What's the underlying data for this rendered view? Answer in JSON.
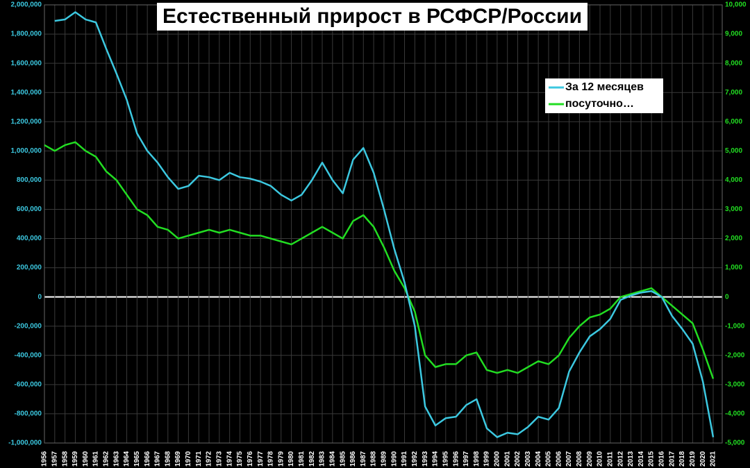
{
  "chart_data": {
    "type": "line",
    "title": "Естественный прирост в РСФСР/России",
    "x": [
      1956,
      1957,
      1958,
      1959,
      1960,
      1961,
      1962,
      1963,
      1964,
      1965,
      1966,
      1967,
      1968,
      1969,
      1970,
      1971,
      1972,
      1973,
      1974,
      1975,
      1976,
      1977,
      1978,
      1979,
      1980,
      1981,
      1982,
      1983,
      1984,
      1985,
      1986,
      1987,
      1988,
      1989,
      1990,
      1991,
      1992,
      1993,
      1994,
      1995,
      1996,
      1997,
      1998,
      1999,
      2000,
      2001,
      2002,
      2003,
      2004,
      2005,
      2006,
      2007,
      2008,
      2009,
      2010,
      2011,
      2012,
      2013,
      2014,
      2015,
      2016,
      2017,
      2018,
      2019,
      2020,
      2021
    ],
    "xlim": [
      1956,
      2021
    ],
    "xticks": [
      1956,
      1957,
      1958,
      1959,
      1960,
      1961,
      1962,
      1963,
      1964,
      1965,
      1966,
      1967,
      1968,
      1969,
      1970,
      1971,
      1972,
      1973,
      1974,
      1975,
      1976,
      1977,
      1978,
      1979,
      1980,
      1981,
      1982,
      1983,
      1984,
      1985,
      1986,
      1987,
      1988,
      1989,
      1990,
      1991,
      1992,
      1993,
      1994,
      1995,
      1996,
      1997,
      1998,
      1999,
      2000,
      2001,
      2002,
      2003,
      2004,
      2005,
      2006,
      2007,
      2008,
      2009,
      2010,
      2011,
      2012,
      2013,
      2014,
      2015,
      2016,
      2017,
      2018,
      2019,
      2020,
      2021
    ],
    "ylim": [
      -1000000,
      2000000
    ],
    "yticks": [
      {
        "value": -1000000,
        "label": "-1,000,000"
      },
      {
        "value": -800000,
        "label": "-800,000"
      },
      {
        "value": -600000,
        "label": "-600,000"
      },
      {
        "value": -400000,
        "label": "-400,000"
      },
      {
        "value": -200000,
        "label": "-200,000"
      },
      0,
      {
        "value": 200000,
        "label": "200,000"
      },
      {
        "value": 400000,
        "label": "400,000"
      },
      {
        "value": 600000,
        "label": "600,000"
      },
      {
        "value": 800000,
        "label": "800,000"
      },
      {
        "value": 1000000,
        "label": "1,000,000"
      },
      {
        "value": 1200000,
        "label": "1,200,000"
      },
      {
        "value": 1400000,
        "label": "1,400,000"
      },
      {
        "value": 1600000,
        "label": "1,600,000"
      },
      {
        "value": 1800000,
        "label": "1,800,000"
      },
      {
        "value": 2000000,
        "label": "2,000,000"
      }
    ],
    "y2lim": [
      -5000,
      10000
    ],
    "y2ticks": [
      {
        "value": -5000,
        "label": "-5,000"
      },
      {
        "value": -4000,
        "label": "-4,000"
      },
      {
        "value": -3000,
        "label": "-3,000"
      },
      {
        "value": -2000,
        "label": "-2,000"
      },
      {
        "value": -1000,
        "label": "-1,000"
      },
      0,
      {
        "value": 1000,
        "label": "1,000"
      },
      {
        "value": 2000,
        "label": "2,000"
      },
      {
        "value": 3000,
        "label": "3,000"
      },
      {
        "value": 4000,
        "label": "4,000"
      },
      {
        "value": 5000,
        "label": "5,000"
      },
      {
        "value": 6000,
        "label": "6,000"
      },
      {
        "value": 7000,
        "label": "7,000"
      },
      {
        "value": 8000,
        "label": "8,000"
      },
      {
        "value": 9000,
        "label": "9,000"
      },
      {
        "value": 10000,
        "label": "10,000"
      }
    ],
    "grid": true,
    "legend": "upper right",
    "series": [
      {
        "name": "За 12 месяцев",
        "color": "#3cc8e0",
        "values": [
          null,
          1890000,
          1900000,
          1950000,
          1900000,
          1880000,
          1700000,
          1530000,
          1350000,
          1120000,
          1000000,
          920000,
          820000,
          740000,
          760000,
          830000,
          820000,
          800000,
          850000,
          820000,
          810000,
          790000,
          760000,
          700000,
          660000,
          700000,
          800000,
          920000,
          800000,
          710000,
          940000,
          1020000,
          850000,
          600000,
          330000,
          100000,
          -200000,
          -750000,
          -880000,
          -830000,
          -820000,
          -740000,
          -700000,
          -900000,
          -960000,
          -930000,
          -940000,
          -890000,
          -820000,
          -840000,
          -760000,
          -510000,
          -380000,
          -270000,
          -220000,
          -150000,
          -20000,
          10000,
          30000,
          40000,
          0,
          -130000,
          -220000,
          -320000,
          -580000,
          -960000
        ]
      },
      {
        "name": "посуточно…",
        "color": "#22dd22",
        "axis": "y2",
        "values": [
          5200,
          5000,
          5200,
          5300,
          5000,
          4800,
          4300,
          4000,
          3500,
          3000,
          2800,
          2400,
          2300,
          2000,
          2100,
          2200,
          2300,
          2200,
          2300,
          2200,
          2100,
          2100,
          2000,
          1900,
          1800,
          2000,
          2200,
          2400,
          2200,
          2000,
          2600,
          2800,
          2400,
          1700,
          900,
          300,
          -500,
          -2000,
          -2400,
          -2300,
          -2300,
          -2000,
          -1900,
          -2500,
          -2600,
          -2500,
          -2600,
          -2400,
          -2200,
          -2300,
          -2000,
          -1400,
          -1000,
          -700,
          -600,
          -400,
          0,
          100,
          200,
          300,
          0,
          -300,
          -600,
          -900,
          -1800,
          -2800
        ]
      }
    ]
  }
}
